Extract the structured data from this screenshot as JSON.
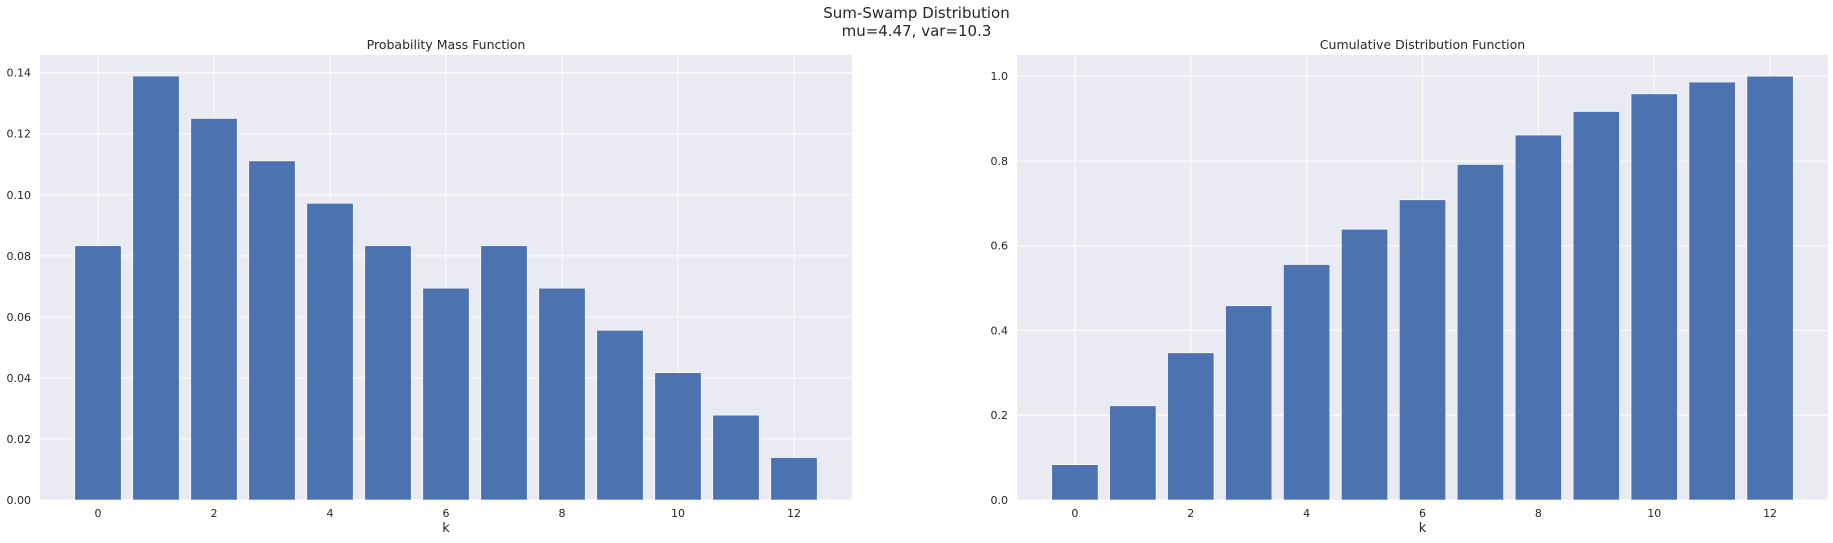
{
  "figure": {
    "title_line1": "Sum-Swamp Distribution",
    "title_line2": "mu=4.47, var=10.3"
  },
  "colors": {
    "bar": "#4c72b0",
    "axes_background": "#eaeaf2",
    "grid": "#ffffff",
    "text": "#262626"
  },
  "chart_data": [
    {
      "type": "bar",
      "title": "Probability Mass Function",
      "xlabel": "k",
      "ylabel": "",
      "x": [
        0,
        1,
        2,
        3,
        4,
        5,
        6,
        7,
        8,
        9,
        10,
        11,
        12
      ],
      "values": [
        0.0833,
        0.1389,
        0.125,
        0.1111,
        0.0972,
        0.0833,
        0.0694,
        0.0833,
        0.0694,
        0.0556,
        0.0417,
        0.0278,
        0.0139
      ],
      "xticks": [
        0,
        2,
        4,
        6,
        8,
        10,
        12
      ],
      "yticks": [
        0.0,
        0.02,
        0.04,
        0.06,
        0.08,
        0.1,
        0.12,
        0.14
      ],
      "ytick_labels": [
        "0.00",
        "0.02",
        "0.04",
        "0.06",
        "0.08",
        "0.10",
        "0.12",
        "0.14"
      ],
      "xlim": [
        -1.0,
        13.0
      ],
      "ylim": [
        0,
        0.1458
      ],
      "grid": true
    },
    {
      "type": "bar",
      "title": "Cumulative Distribution Function",
      "xlabel": "k",
      "ylabel": "",
      "x": [
        0,
        1,
        2,
        3,
        4,
        5,
        6,
        7,
        8,
        9,
        10,
        11,
        12
      ],
      "values": [
        0.0833,
        0.2222,
        0.3472,
        0.4583,
        0.5556,
        0.6389,
        0.7083,
        0.7917,
        0.8611,
        0.9167,
        0.9583,
        0.9861,
        1.0
      ],
      "xticks": [
        0,
        2,
        4,
        6,
        8,
        10,
        12
      ],
      "yticks": [
        0.0,
        0.2,
        0.4,
        0.6,
        0.8,
        1.0
      ],
      "ytick_labels": [
        "0.0",
        "0.2",
        "0.4",
        "0.6",
        "0.8",
        "1.0"
      ],
      "xlim": [
        -1.0,
        13.0
      ],
      "ylim": [
        0,
        1.05
      ],
      "grid": true
    }
  ]
}
